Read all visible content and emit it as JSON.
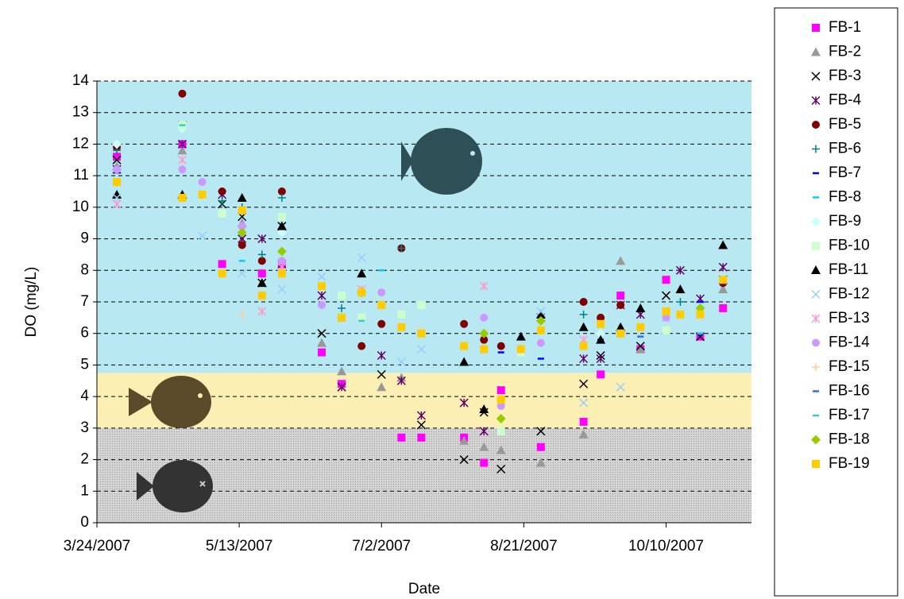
{
  "chart_data": {
    "type": "scatter",
    "x_label": "Date",
    "y_label": "DO (mg/L)",
    "xlim": [
      "3/24/2007",
      "11/9/2007"
    ],
    "xticks": [
      "3/24/2007",
      "5/13/2007",
      "7/2/2007",
      "8/21/2007",
      "10/10/2007"
    ],
    "ylim": [
      0,
      14
    ],
    "yticks": [
      0,
      1,
      2,
      3,
      4,
      5,
      6,
      7,
      8,
      9,
      10,
      11,
      12,
      13,
      14
    ],
    "grid": true,
    "bands": [
      {
        "from": 0,
        "to": 3,
        "color": "#c9c9c9"
      },
      {
        "from": 3,
        "to": 4.75,
        "color": "#fcefb4"
      },
      {
        "from": 4.75,
        "to": 14,
        "color": "#b8e9f3"
      }
    ],
    "legend": "right",
    "series": [
      {
        "name": "FB-1",
        "color": "#ff00ff",
        "marker": "square",
        "x": [
          "3/31/2007",
          "4/23/2007",
          "5/7/2007",
          "5/21/2007",
          "5/28/2007",
          "6/11/2007",
          "6/18/2007",
          "7/9/2007",
          "7/16/2007",
          "7/31/2007",
          "8/7/2007",
          "8/13/2007",
          "8/27/2007",
          "9/11/2007",
          "9/17/2007",
          "9/24/2007",
          "10/1/2007",
          "10/10/2007",
          "10/22/2007",
          "10/30/2007"
        ],
        "values": [
          11.6,
          12.0,
          8.2,
          7.9,
          8.2,
          5.4,
          4.4,
          2.7,
          2.7,
          2.7,
          1.9,
          4.2,
          2.4,
          3.2,
          4.7,
          7.2,
          5.5,
          7.7,
          5.9,
          6.8
        ]
      },
      {
        "name": "FB-2",
        "color": "#999999",
        "marker": "triangle",
        "x": [
          "3/31/2007",
          "4/23/2007",
          "5/14/2007",
          "5/28/2007",
          "6/11/2007",
          "6/18/2007",
          "7/2/2007",
          "7/9/2007",
          "7/31/2007",
          "8/7/2007",
          "8/13/2007",
          "8/27/2007",
          "9/11/2007",
          "9/24/2007",
          "10/1/2007",
          "10/30/2007"
        ],
        "values": [
          11.3,
          11.8,
          9.5,
          9.4,
          5.7,
          4.8,
          4.3,
          4.6,
          2.6,
          2.4,
          2.3,
          1.9,
          2.8,
          8.3,
          5.5,
          7.4
        ]
      },
      {
        "name": "FB-3",
        "color": "#000000",
        "marker": "x",
        "x": [
          "3/31/2007",
          "4/23/2007",
          "5/7/2007",
          "5/14/2007",
          "5/21/2007",
          "5/28/2007",
          "6/11/2007",
          "6/18/2007",
          "7/2/2007",
          "7/16/2007",
          "7/31/2007",
          "8/7/2007",
          "8/13/2007",
          "8/27/2007",
          "9/11/2007",
          "9/17/2007",
          "10/1/2007",
          "10/10/2007",
          "10/22/2007",
          "10/30/2007"
        ],
        "values": [
          11.5,
          12.6,
          10.1,
          9.7,
          7.6,
          9.4,
          6.0,
          4.3,
          4.7,
          3.1,
          2.0,
          3.5,
          1.7,
          2.9,
          4.4,
          5.3,
          5.6,
          7.2,
          5.9,
          7.7
        ]
      },
      {
        "name": "FB-4",
        "color": "#660066",
        "marker": "asterisk",
        "x": [
          "3/31/2007",
          "4/23/2007",
          "5/7/2007",
          "5/14/2007",
          "5/21/2007",
          "5/28/2007",
          "6/11/2007",
          "6/18/2007",
          "7/2/2007",
          "7/9/2007",
          "7/16/2007",
          "7/31/2007",
          "8/7/2007",
          "8/27/2007",
          "9/11/2007",
          "9/17/2007",
          "9/24/2007",
          "10/1/2007",
          "10/15/2007",
          "10/22/2007",
          "10/30/2007"
        ],
        "values": [
          11.2,
          12.0,
          10.4,
          9.0,
          9.0,
          8.2,
          7.2,
          4.3,
          5.3,
          4.5,
          3.4,
          3.8,
          2.9,
          6.5,
          5.2,
          5.2,
          6.9,
          6.6,
          8.0,
          7.1,
          8.1
        ]
      },
      {
        "name": "FB-5",
        "color": "#800000",
        "marker": "circle",
        "x": [
          "3/31/2007",
          "4/23/2007",
          "5/7/2007",
          "5/14/2007",
          "5/21/2007",
          "5/28/2007",
          "6/18/2007",
          "6/25/2007",
          "7/2/2007",
          "7/9/2007",
          "7/31/2007",
          "8/7/2007",
          "8/13/2007",
          "9/11/2007",
          "9/17/2007",
          "9/24/2007",
          "10/30/2007"
        ],
        "values": [
          11.9,
          13.6,
          10.5,
          8.8,
          8.3,
          10.5,
          6.5,
          5.6,
          6.3,
          8.7,
          6.3,
          5.8,
          5.6,
          7.0,
          6.5,
          6.9,
          7.6
        ]
      },
      {
        "name": "FB-6",
        "color": "#008080",
        "marker": "plus",
        "x": [
          "3/31/2007",
          "4/23/2007",
          "5/7/2007",
          "5/14/2007",
          "5/21/2007",
          "5/28/2007",
          "6/18/2007",
          "7/9/2007",
          "9/11/2007",
          "10/15/2007"
        ],
        "values": [
          11.8,
          12.5,
          10.2,
          10.0,
          8.5,
          10.3,
          6.8,
          8.7,
          6.6,
          7.0
        ]
      },
      {
        "name": "FB-7",
        "color": "#0000ff",
        "marker": "dash",
        "x": [
          "3/31/2007",
          "8/13/2007",
          "8/27/2007",
          "9/17/2007",
          "10/22/2007"
        ],
        "values": [
          11.1,
          5.4,
          5.2,
          5.8,
          7.0
        ]
      },
      {
        "name": "FB-8",
        "color": "#00ccff",
        "marker": "dash",
        "x": [
          "5/14/2007",
          "7/2/2007",
          "10/22/2007"
        ],
        "values": [
          8.3,
          8.0,
          6.0
        ]
      },
      {
        "name": "FB-9",
        "color": "#ccffff",
        "marker": "diamond",
        "x": [
          "3/31/2007",
          "4/23/2007",
          "5/28/2007",
          "9/17/2007"
        ],
        "values": [
          12.0,
          12.5,
          9.2,
          6.0
        ]
      },
      {
        "name": "FB-10",
        "color": "#ccffcc",
        "marker": "square",
        "x": [
          "4/23/2007",
          "5/7/2007",
          "5/28/2007",
          "6/18/2007",
          "6/25/2007",
          "7/9/2007",
          "7/16/2007",
          "8/13/2007",
          "8/20/2007",
          "10/10/2007"
        ],
        "values": [
          12.6,
          9.8,
          9.7,
          7.2,
          6.5,
          6.6,
          6.9,
          2.9,
          5.4,
          6.1
        ]
      },
      {
        "name": "FB-11",
        "color": "#000000",
        "marker": "triangle",
        "x": [
          "3/31/2007",
          "4/23/2007",
          "5/14/2007",
          "5/21/2007",
          "5/28/2007",
          "6/25/2007",
          "7/31/2007",
          "8/7/2007",
          "8/20/2007",
          "8/27/2007",
          "9/11/2007",
          "9/17/2007",
          "9/24/2007",
          "10/1/2007",
          "10/15/2007",
          "10/30/2007"
        ],
        "values": [
          10.4,
          10.4,
          10.3,
          7.6,
          9.4,
          7.9,
          5.1,
          3.6,
          5.9,
          6.6,
          6.2,
          5.8,
          6.2,
          6.8,
          7.4,
          8.8
        ]
      },
      {
        "name": "FB-12",
        "color": "#99ccff",
        "marker": "x",
        "x": [
          "3/31/2007",
          "4/30/2007",
          "5/14/2007",
          "5/28/2007",
          "6/11/2007",
          "6/25/2007",
          "7/9/2007",
          "7/16/2007",
          "8/27/2007",
          "9/11/2007",
          "9/24/2007",
          "10/10/2007"
        ],
        "values": [
          10.3,
          9.1,
          7.9,
          7.4,
          7.8,
          8.4,
          5.1,
          5.5,
          6.7,
          3.8,
          4.3,
          6.5
        ]
      },
      {
        "name": "FB-13",
        "color": "#ff99cc",
        "marker": "asterisk",
        "x": [
          "3/31/2007",
          "4/23/2007",
          "5/21/2007",
          "5/28/2007",
          "6/25/2007",
          "8/7/2007",
          "9/11/2007"
        ],
        "values": [
          10.1,
          11.5,
          6.7,
          8.1,
          7.4,
          7.5,
          5.8
        ]
      },
      {
        "name": "FB-14",
        "color": "#cc99ff",
        "marker": "circle",
        "x": [
          "3/31/2007",
          "4/23/2007",
          "4/30/2007",
          "5/14/2007",
          "5/28/2007",
          "6/11/2007",
          "7/2/2007",
          "8/7/2007",
          "8/13/2007",
          "8/27/2007",
          "10/10/2007"
        ],
        "values": [
          11.2,
          11.2,
          10.8,
          9.4,
          8.3,
          6.9,
          7.3,
          6.5,
          3.7,
          5.7,
          6.5
        ]
      },
      {
        "name": "FB-15",
        "color": "#ffcc99",
        "marker": "plus",
        "x": [
          "5/14/2007",
          "7/16/2007"
        ],
        "values": [
          6.6,
          6.1
        ]
      },
      {
        "name": "FB-16",
        "color": "#3366ff",
        "marker": "dash",
        "x": [
          "10/1/2007"
        ],
        "values": [
          5.9
        ]
      },
      {
        "name": "FB-17",
        "color": "#33cccc",
        "marker": "dash",
        "x": [
          "4/23/2007",
          "6/25/2007"
        ],
        "values": [
          12.6,
          6.4
        ]
      },
      {
        "name": "FB-18",
        "color": "#99cc00",
        "marker": "diamond",
        "x": [
          "5/14/2007",
          "5/28/2007",
          "6/25/2007",
          "8/7/2007",
          "8/13/2007",
          "8/27/2007",
          "10/22/2007"
        ],
        "values": [
          9.2,
          8.6,
          7.3,
          6.0,
          3.3,
          6.4,
          6.8
        ]
      },
      {
        "name": "FB-19",
        "color": "#ffcc00",
        "marker": "square",
        "x": [
          "3/31/2007",
          "4/23/2007",
          "4/30/2007",
          "5/7/2007",
          "5/14/2007",
          "5/21/2007",
          "5/28/2007",
          "6/11/2007",
          "6/18/2007",
          "6/25/2007",
          "7/2/2007",
          "7/9/2007",
          "7/16/2007",
          "7/31/2007",
          "8/7/2007",
          "8/13/2007",
          "8/20/2007",
          "8/27/2007",
          "9/11/2007",
          "9/17/2007",
          "9/24/2007",
          "10/1/2007",
          "10/10/2007",
          "10/15/2007",
          "10/22/2007",
          "10/30/2007"
        ],
        "values": [
          10.8,
          10.3,
          10.4,
          7.9,
          9.9,
          7.2,
          7.9,
          7.5,
          6.5,
          7.3,
          6.9,
          6.2,
          6.0,
          5.6,
          5.5,
          3.9,
          5.5,
          6.1,
          5.6,
          6.3,
          6.0,
          6.2,
          6.7,
          6.6,
          6.6,
          7.7
        ]
      }
    ]
  }
}
